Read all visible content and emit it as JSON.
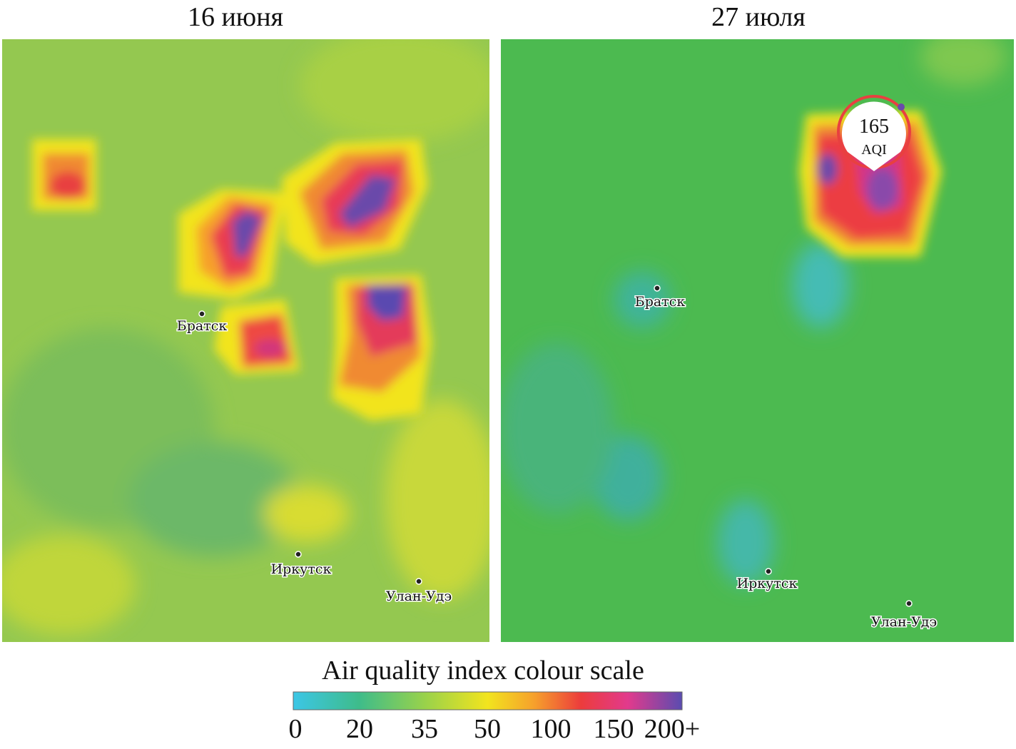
{
  "panels": [
    {
      "title": "16 июня",
      "cities": [
        {
          "name": "Братск"
        },
        {
          "name": "Иркутск"
        },
        {
          "name": "Улан-Удэ"
        }
      ]
    },
    {
      "title": "27 июля",
      "cities": [
        {
          "name": "Братск"
        },
        {
          "name": "Иркутск"
        },
        {
          "name": "Улан-Удэ"
        }
      ],
      "marker": {
        "value": 165,
        "unit": "AQI"
      }
    }
  ],
  "legend": {
    "title": "Air quality index colour scale",
    "ticks": [
      "0",
      "20",
      "35",
      "50",
      "100",
      "150",
      "200+"
    ]
  }
}
